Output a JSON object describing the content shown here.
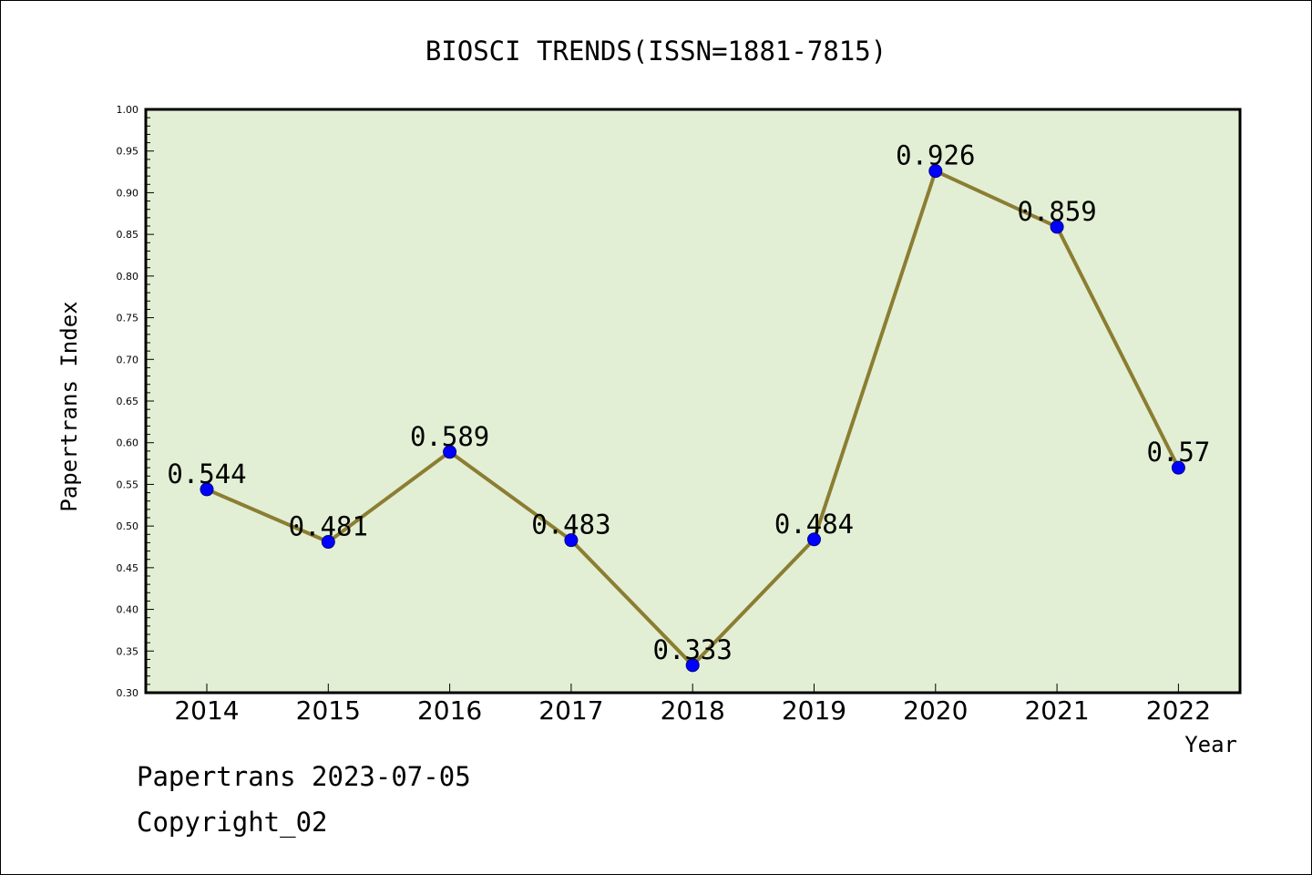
{
  "chart_data": {
    "type": "line",
    "title": "BIOSCI TRENDS(ISSN=1881-7815)",
    "xlabel": "Year",
    "ylabel": "Papertrans Index",
    "categories": [
      "2014",
      "2015",
      "2016",
      "2017",
      "2018",
      "2019",
      "2020",
      "2021",
      "2022"
    ],
    "series": [
      {
        "values": [
          0.544,
          0.481,
          0.589,
          0.483,
          0.333,
          0.484,
          0.926,
          0.859,
          0.57
        ],
        "labels": [
          "0.544",
          "0.481",
          "0.589",
          "0.483",
          "0.333",
          "0.484",
          "0.926",
          "0.859",
          "0.57"
        ],
        "line_color": "#8b7d32",
        "marker_color": "#0000ff"
      }
    ],
    "ylim": [
      0.3,
      1.0
    ],
    "yticks": [
      "0.30",
      "0.35",
      "0.40",
      "0.45",
      "0.50",
      "0.55",
      "0.60",
      "0.65",
      "0.70",
      "0.75",
      "0.80",
      "0.85",
      "0.90",
      "0.95",
      "1.00"
    ],
    "plot_background": "#e2efd4",
    "grid": false,
    "legend": "none"
  },
  "footer": {
    "source": "Papertrans 2023-07-05",
    "copyright": "Copyright_02"
  }
}
